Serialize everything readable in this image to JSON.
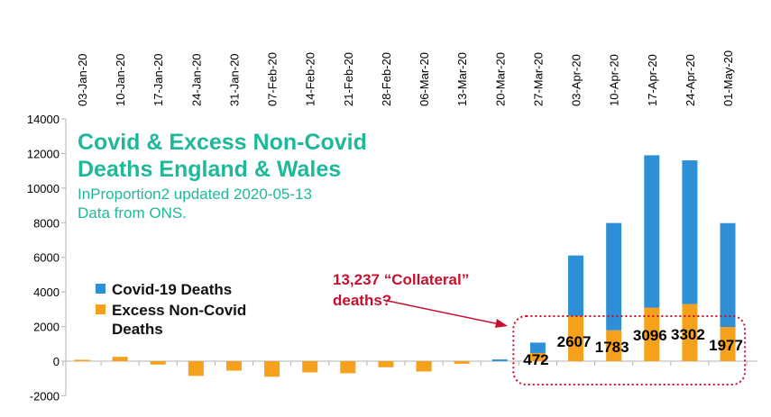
{
  "chart_data": {
    "type": "bar",
    "stacked": true,
    "title": "Covid & Excess Non-Covid\nDeaths England & Wales",
    "subtitle": "InProportion2 updated 2020-05-13\nData from ONS.",
    "categories": [
      "03-Jan-20",
      "10-Jan-20",
      "17-Jan-20",
      "24-Jan-20",
      "31-Jan-20",
      "07-Feb-20",
      "14-Feb-20",
      "21-Feb-20",
      "28-Feb-20",
      "06-Mar-20",
      "13-Mar-20",
      "20-Mar-20",
      "27-Mar-20",
      "03-Apr-20",
      "10-Apr-20",
      "17-Apr-20",
      "24-Apr-20",
      "01-May-20"
    ],
    "series": [
      {
        "name": "Covid-19 Deaths",
        "color": "#2e8fd6",
        "values": [
          0,
          0,
          0,
          0,
          0,
          0,
          0,
          0,
          0,
          0,
          0,
          100,
          600,
          3500,
          6200,
          8800,
          8300,
          6000
        ]
      },
      {
        "name": "Excess Non-Covid Deaths",
        "color": "#f5a11c",
        "values": [
          80,
          250,
          -200,
          -850,
          -550,
          -900,
          -650,
          -700,
          -350,
          -600,
          -150,
          0,
          472,
          2607,
          1783,
          3096,
          3302,
          1977
        ]
      }
    ],
    "data_labels": [
      {
        "category": "27-Mar-20",
        "text": "472"
      },
      {
        "category": "03-Apr-20",
        "text": "2607"
      },
      {
        "category": "10-Apr-20",
        "text": "1783"
      },
      {
        "category": "17-Apr-20",
        "text": "3096"
      },
      {
        "category": "24-Apr-20",
        "text": "3302"
      },
      {
        "category": "01-May-20",
        "text": "1977"
      }
    ],
    "ylim": [
      -2000,
      14000
    ],
    "yticks": [
      "-2000",
      "0",
      "2000",
      "4000",
      "6000",
      "8000",
      "10000",
      "12000",
      "14000"
    ],
    "grid": false,
    "legend_position": "left-middle",
    "annotation": {
      "text": "13,237 “Collateral”\ndeaths?",
      "color": "#c8102e",
      "target_categories": [
        "27-Mar-20",
        "01-May-20"
      ]
    }
  }
}
